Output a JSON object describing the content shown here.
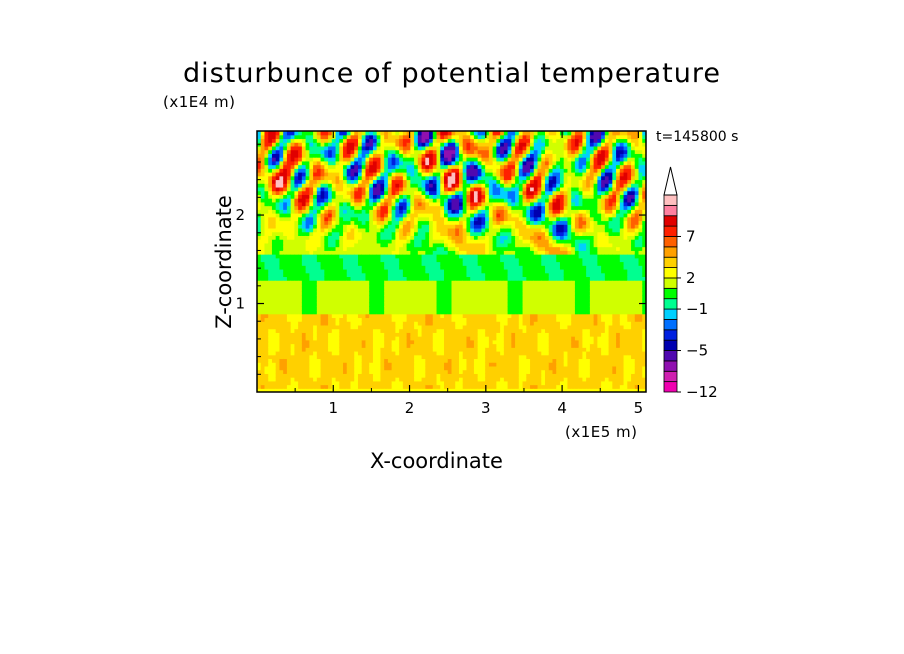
{
  "chart_data": {
    "type": "heatmap",
    "title": "disturbunce of potential temperature",
    "xlabel": "X-coordinate",
    "ylabel": "Z-coordinate",
    "x_unit": "(x1E5 m)",
    "y_unit": "(x1E4 m)",
    "annotation": "t=145800 s",
    "xlim": [
      0,
      5.1
    ],
    "ylim": [
      0,
      2.95
    ],
    "x_ticks": [
      1,
      2,
      3,
      4,
      5
    ],
    "y_ticks": [
      1,
      2
    ],
    "colorbar": {
      "labels": [
        {
          "text": "7",
          "value": 7
        },
        {
          "text": "2",
          "value": 2
        },
        {
          "text": "−1",
          "value": -1
        },
        {
          "text": "−5",
          "value": -5
        },
        {
          "text": "−12",
          "value": -12
        }
      ],
      "levels": [
        -12,
        -10,
        -8,
        -6,
        -5,
        -4,
        -3,
        -2,
        -1,
        0,
        1,
        2,
        3,
        4,
        5,
        7,
        9
      ],
      "colors": [
        "#f000b0",
        "#d020b0",
        "#9010b0",
        "#5008b0",
        "#0000b0",
        "#0020e0",
        "#0070ff",
        "#00d0ff",
        "#00ff90",
        "#00ff00",
        "#d0ff00",
        "#ffff00",
        "#ffd000",
        "#ffa000",
        "#ff6000",
        "#ff2000",
        "#e00000",
        "#ff80a0",
        "#ffc0c0"
      ],
      "extend": "max"
    }
  }
}
